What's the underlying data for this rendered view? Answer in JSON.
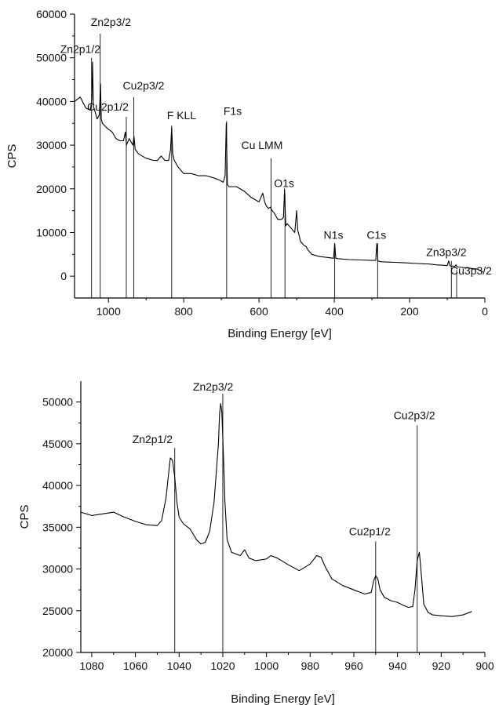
{
  "chart_data": [
    {
      "type": "line",
      "title": "",
      "xlabel": "Binding Energy [eV]",
      "ylabel": "CPS",
      "xlim": [
        1090,
        0
      ],
      "ylim": [
        -5000,
        60000
      ],
      "x_reversed": true,
      "grid": false,
      "x_ticks": [
        1000,
        800,
        600,
        400,
        200,
        0
      ],
      "x_tick_labels": [
        "1000",
        "800",
        "600",
        "400",
        "200",
        "0"
      ],
      "y_ticks": [
        0,
        10000,
        20000,
        30000,
        40000,
        50000,
        60000
      ],
      "y_tick_labels": [
        "0",
        "10000",
        "20000",
        "30000",
        "40000",
        "50000",
        "60000"
      ],
      "series": [
        {
          "x": [
            1090,
            1075,
            1060,
            1048,
            1044,
            1042,
            1040,
            1030,
            1024,
            1021,
            1019,
            1016,
            1005,
            990,
            980,
            970,
            960,
            955,
            952,
            945,
            935,
            932,
            929,
            920,
            900,
            880,
            870,
            860,
            850,
            840,
            835,
            832,
            829,
            825,
            815,
            800,
            780,
            760,
            740,
            720,
            705,
            695,
            690,
            687,
            684,
            680,
            660,
            640,
            620,
            600,
            590,
            585,
            580,
            575,
            570,
            565,
            560,
            550,
            540,
            535,
            532,
            529,
            525,
            515,
            505,
            500,
            497,
            494,
            490,
            480,
            475,
            470,
            460,
            440,
            420,
            410,
            402,
            399,
            396,
            390,
            360,
            330,
            300,
            290,
            287,
            284,
            281,
            275,
            250,
            220,
            200,
            180,
            160,
            150,
            140,
            130,
            110,
            100,
            96,
            93,
            90,
            85,
            80,
            77,
            74,
            70,
            60,
            40,
            20,
            5
          ],
          "y": [
            40000,
            41000,
            38500,
            38000,
            40500,
            49000,
            39000,
            36000,
            37000,
            44000,
            36000,
            35000,
            34000,
            33000,
            31500,
            31000,
            31000,
            33000,
            30000,
            31500,
            30000,
            32000,
            29000,
            28000,
            27000,
            26500,
            26500,
            27500,
            26500,
            26500,
            29000,
            34000,
            28000,
            26500,
            25000,
            23500,
            23500,
            23000,
            23000,
            22500,
            22000,
            21500,
            23000,
            35000,
            21000,
            20500,
            20500,
            19500,
            18000,
            17000,
            19000,
            17000,
            16000,
            15500,
            15800,
            15000,
            14500,
            13000,
            13000,
            13500,
            20000,
            11500,
            12000,
            11000,
            10000,
            15000,
            10500,
            9500,
            8000,
            7000,
            6800,
            6000,
            5000,
            4500,
            4300,
            4200,
            4100,
            7500,
            4100,
            4000,
            3800,
            3700,
            3600,
            3600,
            7500,
            3500,
            3400,
            3300,
            3200,
            3100,
            3000,
            2900,
            2800,
            2800,
            2700,
            2600,
            2500,
            2400,
            3500,
            2400,
            2300,
            2300,
            2200,
            2600,
            2200,
            2100,
            2000,
            1800,
            1600,
            1000
          ]
        }
      ],
      "markers": [
        {
          "label": "Zn2p3/2",
          "x": 1021.8,
          "y": 55500
        },
        {
          "label": "Zn2p1/2",
          "x": 1044.8,
          "y": 50000
        },
        {
          "label": "Cu2p3/2",
          "x": 932.7,
          "y": 41000
        },
        {
          "label": "Cu2p1/2",
          "x": 952.5,
          "y": 36500
        },
        {
          "label": "F KLL",
          "x": 832,
          "y": 34500
        },
        {
          "label": "F1s",
          "x": 686,
          "y": 35500
        },
        {
          "label": "Cu LMM",
          "x": 568,
          "y": 27000
        },
        {
          "label": "O1s",
          "x": 531,
          "y": 19000
        },
        {
          "label": "N1s",
          "x": 399,
          "y": 7500
        },
        {
          "label": "C1s",
          "x": 284.8,
          "y": 7500
        },
        {
          "label": "Zn3p3/2",
          "x": 89,
          "y": 3500
        },
        {
          "label": "Cu3p3/2",
          "x": 75,
          "y": 1500
        }
      ]
    },
    {
      "type": "line",
      "title": "",
      "xlabel": "Binding Energy [eV]",
      "ylabel": "CPS",
      "xlim": [
        1085,
        900
      ],
      "ylim": [
        20000,
        52500
      ],
      "x_reversed": true,
      "grid": false,
      "x_ticks": [
        1080,
        1060,
        1040,
        1020,
        1000,
        980,
        960,
        940,
        920,
        900
      ],
      "x_tick_labels": [
        "1080",
        "1060",
        "1040",
        "1020",
        "1000",
        "980",
        "960",
        "940",
        "920",
        "900"
      ],
      "y_ticks": [
        20000,
        25000,
        30000,
        35000,
        40000,
        45000,
        50000
      ],
      "y_tick_labels": [
        "20000",
        "25000",
        "30000",
        "35000",
        "40000",
        "45000",
        "50000"
      ],
      "series": [
        {
          "x": [
            1085,
            1080,
            1075,
            1070,
            1065,
            1060,
            1055,
            1050,
            1048,
            1046,
            1045,
            1044,
            1043,
            1042,
            1041,
            1040,
            1038,
            1035,
            1032,
            1030,
            1028,
            1026,
            1024,
            1022,
            1021.5,
            1021,
            1020.5,
            1020,
            1019,
            1018,
            1016,
            1014,
            1012,
            1010,
            1008,
            1005,
            1000,
            998,
            995,
            990,
            985,
            980,
            977,
            975,
            973,
            970,
            965,
            960,
            955,
            952,
            951,
            950,
            949,
            948,
            946,
            943,
            940,
            937,
            935,
            933,
            932,
            931,
            930,
            929,
            928,
            926,
            924,
            920,
            915,
            910,
            906
          ],
          "y": [
            36800,
            36400,
            36600,
            36800,
            36200,
            35700,
            35300,
            35200,
            35800,
            38500,
            41000,
            43300,
            43000,
            41000,
            38000,
            36200,
            35400,
            34800,
            33500,
            33000,
            33200,
            34500,
            38000,
            45000,
            48500,
            49800,
            49000,
            46000,
            38000,
            33500,
            32000,
            31800,
            31600,
            32300,
            31300,
            31000,
            31200,
            31600,
            31300,
            30500,
            29800,
            30600,
            31600,
            31400,
            30200,
            28800,
            28000,
            27500,
            27000,
            27200,
            28500,
            29200,
            28800,
            27500,
            26600,
            26200,
            26000,
            25600,
            25400,
            25500,
            27500,
            31000,
            32000,
            29000,
            25800,
            24800,
            24500,
            24400,
            24300,
            24500,
            24900
          ]
        }
      ],
      "markers": [
        {
          "label": "Zn2p3/2",
          "x": 1020,
          "y": 51000
        },
        {
          "label": "Zn2p1/2",
          "x": 1042,
          "y": 44500
        },
        {
          "label": "Cu2p3/2",
          "x": 931,
          "y": 47200
        },
        {
          "label": "Cu2p1/2",
          "x": 950,
          "y": 33300
        }
      ]
    }
  ]
}
